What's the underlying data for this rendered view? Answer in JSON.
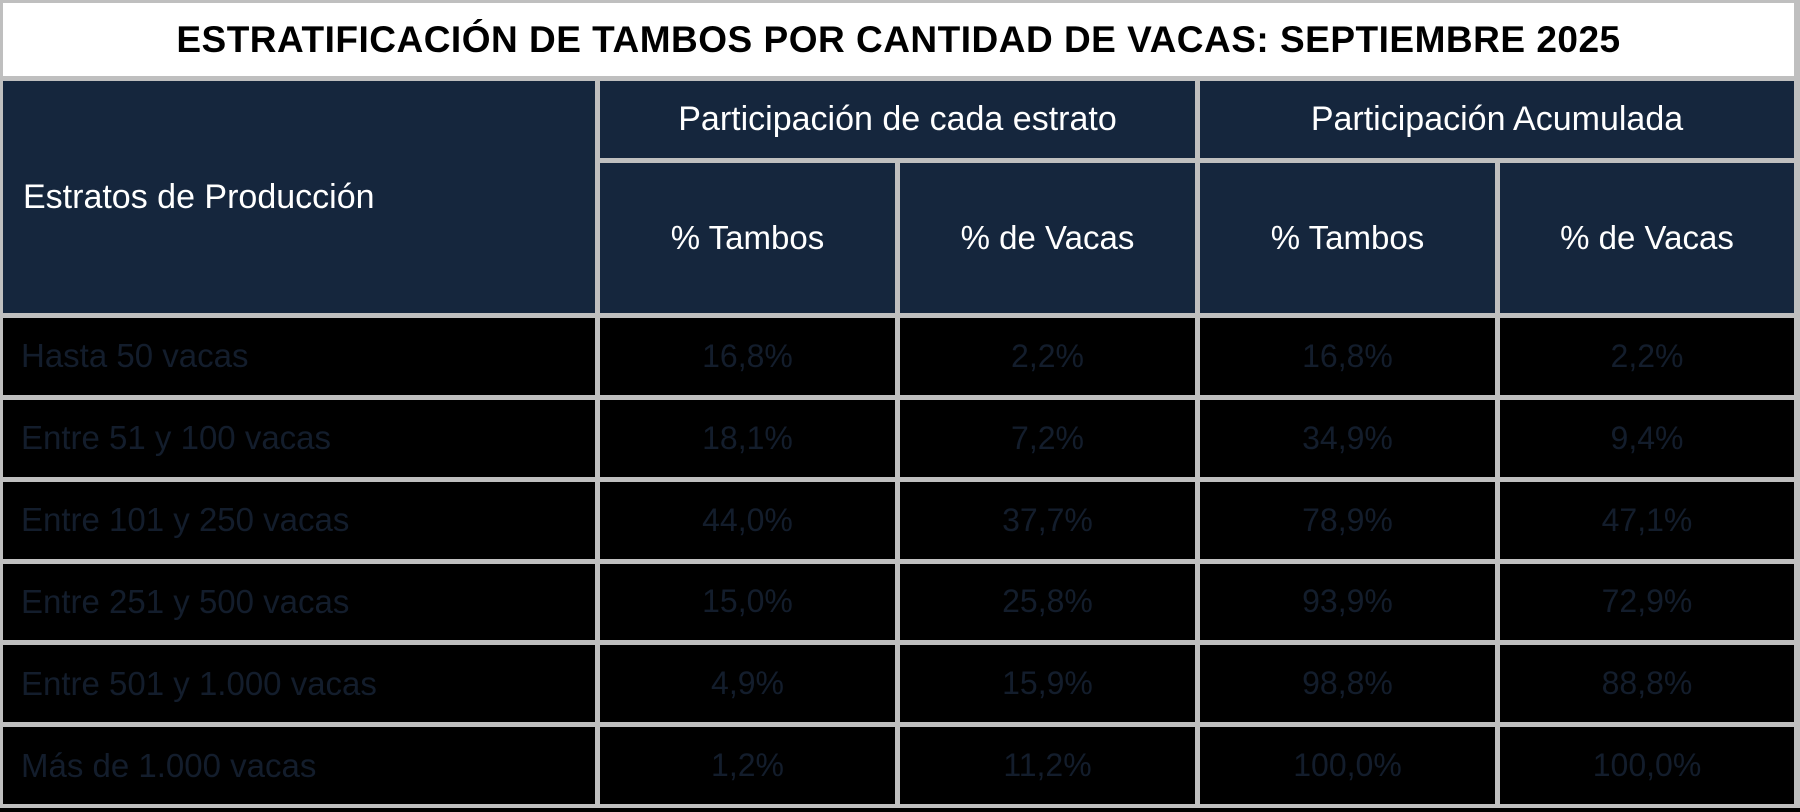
{
  "title": "ESTRATIFICACIÓN DE TAMBOS POR CANTIDAD DE VACAS: SEPTIEMBRE 2025",
  "table": {
    "row_header": "Estratos de Producción",
    "groups": [
      {
        "label": "Participación de cada estrato",
        "columns": [
          "% Tambos",
          "% de Vacas"
        ]
      },
      {
        "label": "Participación Acumulada",
        "columns": [
          "% Tambos",
          "% de Vacas"
        ]
      }
    ],
    "rows": [
      {
        "label": "Hasta 50 vacas",
        "values": [
          "16,8%",
          "2,2%",
          "16,8%",
          "2,2%"
        ]
      },
      {
        "label": "Entre 51 y 100 vacas",
        "values": [
          "18,1%",
          "7,2%",
          "34,9%",
          "9,4%"
        ]
      },
      {
        "label": "Entre 101 y 250 vacas",
        "values": [
          "44,0%",
          "37,7%",
          "78,9%",
          "47,1%"
        ]
      },
      {
        "label": "Entre 251 y 500 vacas",
        "values": [
          "15,0%",
          "25,8%",
          "93,9%",
          "72,9%"
        ]
      },
      {
        "label": "Entre 501 y 1.000 vacas",
        "values": [
          "4,9%",
          "15,9%",
          "98,8%",
          "88,8%"
        ]
      },
      {
        "label": "Más de 1.000 vacas",
        "values": [
          "1,2%",
          "11,2%",
          "100,0%",
          "100,0%"
        ]
      }
    ]
  },
  "colors": {
    "header_bg": "#15263d",
    "header_text": "#ffffff",
    "row_bg": "#000000",
    "row_text": "#131d2c",
    "grid": "#bfbfbf",
    "title_bg": "#ffffff",
    "title_text": "#000000",
    "bottom_border": "#000000"
  },
  "chart_data": {
    "type": "table",
    "title": "ESTRATIFICACIÓN DE TAMBOS POR CANTIDAD DE VACAS: SEPTIEMBRE 2025",
    "columns": [
      "Estratos de Producción",
      "Participación de cada estrato - % Tambos",
      "Participación de cada estrato - % de Vacas",
      "Participación Acumulada - % Tambos",
      "Participación Acumulada - % de Vacas"
    ],
    "rows": [
      [
        "Hasta 50 vacas",
        "16,8%",
        "2,2%",
        "16,8%",
        "2,2%"
      ],
      [
        "Entre 51 y 100 vacas",
        "18,1%",
        "7,2%",
        "34,9%",
        "9,4%"
      ],
      [
        "Entre 101 y 250 vacas",
        "44,0%",
        "37,7%",
        "78,9%",
        "47,1%"
      ],
      [
        "Entre 251 y 500 vacas",
        "15,0%",
        "25,8%",
        "93,9%",
        "72,9%"
      ],
      [
        "Entre 501 y 1.000 vacas",
        "4,9%",
        "15,9%",
        "98,8%",
        "88,8%"
      ],
      [
        "Más de 1.000 vacas",
        "1,2%",
        "11,2%",
        "100,0%",
        "100,0%"
      ]
    ],
    "values_numeric_pct": {
      "participacion_estrato_tambos": [
        16.8,
        18.1,
        44.0,
        15.0,
        4.9,
        1.2
      ],
      "participacion_estrato_vacas": [
        2.2,
        7.2,
        37.7,
        25.8,
        15.9,
        11.2
      ],
      "participacion_acumulada_tambos": [
        16.8,
        34.9,
        78.9,
        93.9,
        98.8,
        100.0
      ],
      "participacion_acumulada_vacas": [
        2.2,
        9.4,
        47.1,
        72.9,
        88.8,
        100.0
      ]
    }
  }
}
